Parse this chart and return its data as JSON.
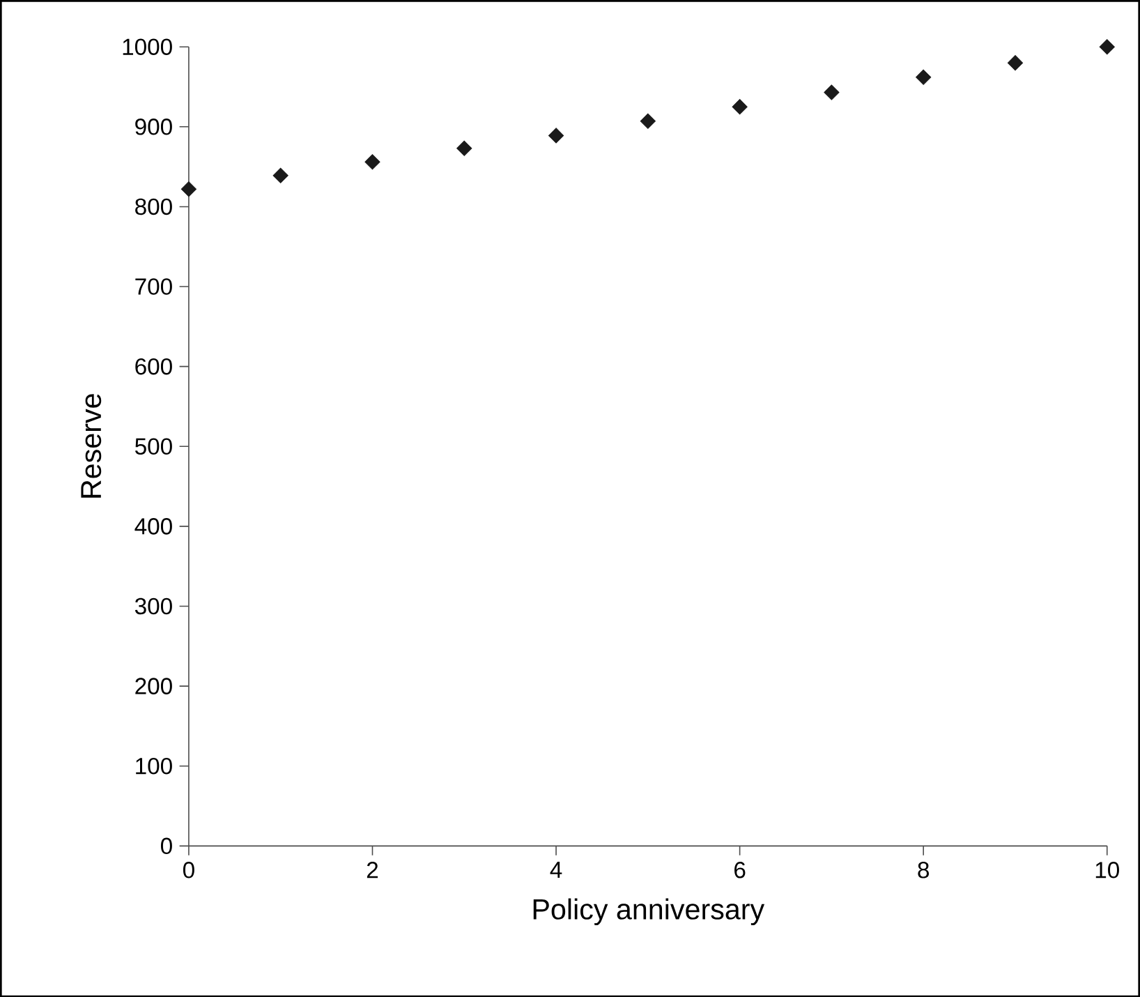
{
  "chart_data": {
    "type": "scatter",
    "xlabel": "Policy anniversary",
    "ylabel": "Reserve",
    "x": [
      0,
      1,
      2,
      3,
      4,
      5,
      6,
      7,
      8,
      9,
      10
    ],
    "values": [
      822,
      839,
      856,
      873,
      889,
      907,
      925,
      943,
      962,
      980,
      1000
    ],
    "color": "#1a1a1a",
    "marker": "diamond",
    "xlim": [
      0,
      10
    ],
    "xticks": [
      0,
      2,
      4,
      6,
      8,
      10
    ],
    "ylim": [
      0,
      1000
    ],
    "yticks": [
      0,
      100,
      200,
      300,
      400,
      500,
      600,
      700,
      800,
      900,
      1000
    ]
  }
}
